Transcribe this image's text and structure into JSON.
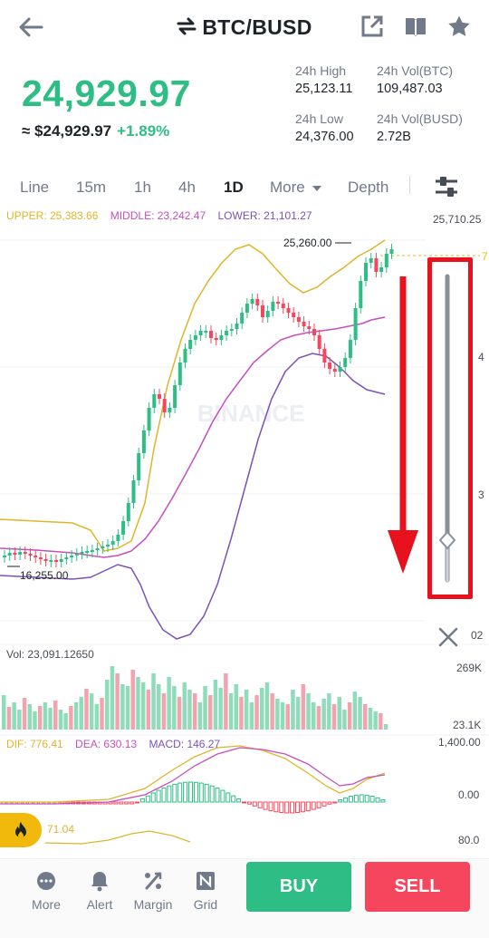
{
  "header": {
    "pair": "BTC/BUSD"
  },
  "ticker": {
    "last_price": "24,929.97",
    "fiat_price": "≈ $24,929.97",
    "change_pct": "+1.89%",
    "high_label": "24h High",
    "high_value": "25,123.11",
    "vol_btc_label": "24h Vol(BTC)",
    "vol_btc_value": "109,487.03",
    "low_label": "24h Low",
    "low_value": "24,376.00",
    "vol_busd_label": "24h Vol(BUSD)",
    "vol_busd_value": "2.72B"
  },
  "intervals": {
    "items": [
      "Line",
      "15m",
      "1h",
      "4h",
      "1D",
      "More",
      "Depth"
    ],
    "active": "1D"
  },
  "boll": {
    "upper": "UPPER: 25,383.66",
    "middle": "MIDDLE: 23,242.47",
    "lower": "LOWER: 21,101.27"
  },
  "chart": {
    "price_top": "25,710.25",
    "marker_high": "25,260.00",
    "marker_low": "16,255.00",
    "watermark": "BINANCE",
    "edge_labels": [
      "7",
      "4",
      "3",
      "02"
    ]
  },
  "volume": {
    "legend": "Vol: 23,091.12650",
    "axis_top": "269K",
    "axis_bottom": "23.1K"
  },
  "macd": {
    "dif": "DIF: 776.41",
    "dea": "DEA: 630.13",
    "macd": "MACD: 146.27",
    "axis_top": "1,400.00",
    "axis_mid": "0.00"
  },
  "rsi": {
    "value": "71.04",
    "axis_top": "80.0"
  },
  "bottom_nav": {
    "items": [
      {
        "label": "More",
        "icon": "more-dots-icon"
      },
      {
        "label": "Alert",
        "icon": "bell-icon"
      },
      {
        "label": "Margin",
        "icon": "margin-icon"
      },
      {
        "label": "Grid",
        "icon": "grid-icon"
      }
    ],
    "buy": "BUY",
    "sell": "SELL"
  },
  "colors": {
    "up": "#2ebd85",
    "down": "#f6465d",
    "accent": "#f0b90b",
    "boll_upper": "#e0b52c",
    "boll_middle": "#c54fbd",
    "boll_lower": "#7b52b8",
    "annotation": "#e8121f"
  },
  "chart_data": {
    "type": "candlestick",
    "timeframe": "1D",
    "price_labels": [
      "25,710.25",
      "25,260.00",
      "16,255.00"
    ],
    "annotations": [
      "25,260.00",
      "16,255.00"
    ]
  }
}
